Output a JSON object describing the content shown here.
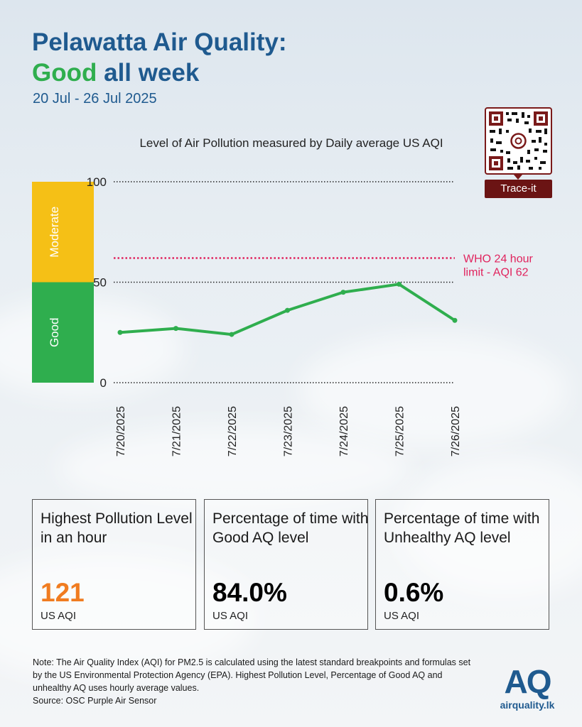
{
  "header": {
    "title_line1": "Pelawatta Air Quality:",
    "title_good": "Good",
    "title_rest": " all week",
    "date_range": "20 Jul - 26 Jul 2025"
  },
  "qr": {
    "label": "Trace-it"
  },
  "chart_data": {
    "type": "line",
    "title": "Level of Air Pollution measured by Daily average US AQI",
    "categories": [
      "7/20/2025",
      "7/21/2025",
      "7/22/2025",
      "7/23/2025",
      "7/24/2025",
      "7/25/2025",
      "7/26/2025"
    ],
    "series": [
      {
        "values": [
          25,
          27,
          24,
          36,
          45,
          49,
          31
        ],
        "color": "#2fae4e"
      }
    ],
    "ylim": [
      0,
      100
    ],
    "yticks": [
      0,
      50,
      100
    ],
    "bands": [
      {
        "label": "Good",
        "from": 0,
        "to": 50,
        "color": "#2fae4e"
      },
      {
        "label": "Moderate",
        "from": 50,
        "to": 100,
        "color": "#f5c016"
      }
    ],
    "reference_line": {
      "value": 62,
      "label_line1": "WHO 24 hour",
      "label_line2": "limit - AQI 62",
      "color": "#e0245e"
    }
  },
  "stats": [
    {
      "label": "Highest Pollution Level in an hour",
      "value": "121",
      "unit": "US AQI",
      "color": "#f07c20"
    },
    {
      "label": "Percentage of time with Good AQ level",
      "value": "84.0%",
      "unit": "US AQI",
      "color": "#000000"
    },
    {
      "label": "Percentage of time with Unhealthy AQ level",
      "value": "0.6%",
      "unit": "US AQI",
      "color": "#000000"
    }
  ],
  "note": {
    "text": "Note: The Air Quality Index (AQI) for PM2.5 is calculated using the latest standard breakpoints and formulas set by the US Environmental Protection Agency (EPA). Highest Pollution Level, Percentage of Good AQ and unhealthy AQ uses hourly average values.",
    "source": "Source: OSC Purple Air Sensor"
  },
  "logo": {
    "mark": "AQ",
    "site": "airquality.lk"
  }
}
